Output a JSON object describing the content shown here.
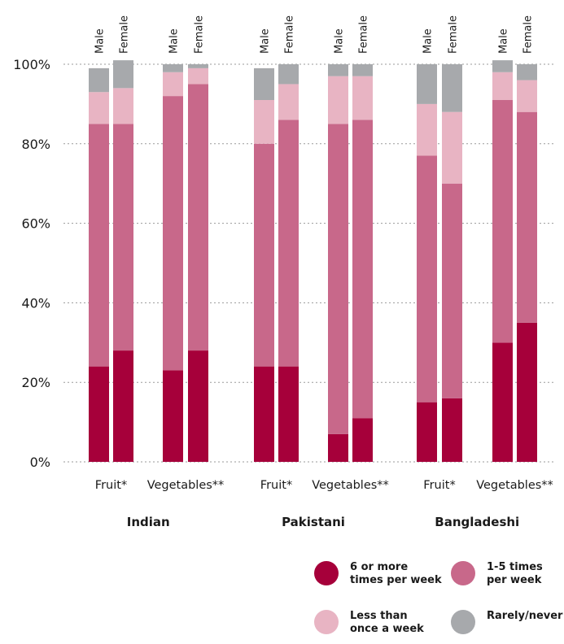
{
  "chart_data": {
    "type": "bar",
    "stacked": true,
    "y_tick_labels": [
      "0%",
      "20%",
      "40%",
      "60%",
      "80%",
      "100%"
    ],
    "ylim": [
      0,
      100
    ],
    "grid": "dotted horizontal",
    "groups": [
      {
        "name": "Indian",
        "foods": [
          {
            "label": "Fruit*",
            "bars": [
              {
                "sex": "Male",
                "values": [
                  24,
                  61,
                  8,
                  6
                ]
              },
              {
                "sex": "Female",
                "values": [
                  28,
                  57,
                  9,
                  7
                ]
              }
            ]
          },
          {
            "label": "Vegetables**",
            "bars": [
              {
                "sex": "Male",
                "values": [
                  23,
                  69,
                  6,
                  2
                ]
              },
              {
                "sex": "Female",
                "values": [
                  28,
                  67,
                  4,
                  1
                ]
              }
            ]
          }
        ]
      },
      {
        "name": "Pakistani",
        "foods": [
          {
            "label": "Fruit*",
            "bars": [
              {
                "sex": "Male",
                "values": [
                  24,
                  56,
                  11,
                  8
                ]
              },
              {
                "sex": "Female",
                "values": [
                  24,
                  62,
                  9,
                  5
                ]
              }
            ]
          },
          {
            "label": "Vegetables**",
            "bars": [
              {
                "sex": "Male",
                "values": [
                  7,
                  78,
                  12,
                  3
                ]
              },
              {
                "sex": "Female",
                "values": [
                  11,
                  75,
                  11,
                  3
                ]
              }
            ]
          }
        ]
      },
      {
        "name": "Bangladeshi",
        "foods": [
          {
            "label": "Fruit*",
            "bars": [
              {
                "sex": "Male",
                "values": [
                  15,
                  62,
                  13,
                  10
                ]
              },
              {
                "sex": "Female",
                "values": [
                  16,
                  54,
                  18,
                  12
                ]
              }
            ]
          },
          {
            "label": "Vegetables**",
            "bars": [
              {
                "sex": "Male",
                "values": [
                  30,
                  61,
                  7,
                  3
                ]
              },
              {
                "sex": "Female",
                "values": [
                  35,
                  53,
                  8,
                  4
                ]
              }
            ]
          }
        ]
      }
    ],
    "legend": {
      "placement": "bottom-right",
      "series": [
        {
          "name": "6 or more\ntimes per week",
          "color": "#a6003a"
        },
        {
          "name": "1-5 times\nper week",
          "color": "#c8688a"
        },
        {
          "name": "Less than\nonce a week",
          "color": "#e8b4c3"
        },
        {
          "name": "Rarely/never",
          "color": "#a7a9ac"
        }
      ]
    }
  }
}
